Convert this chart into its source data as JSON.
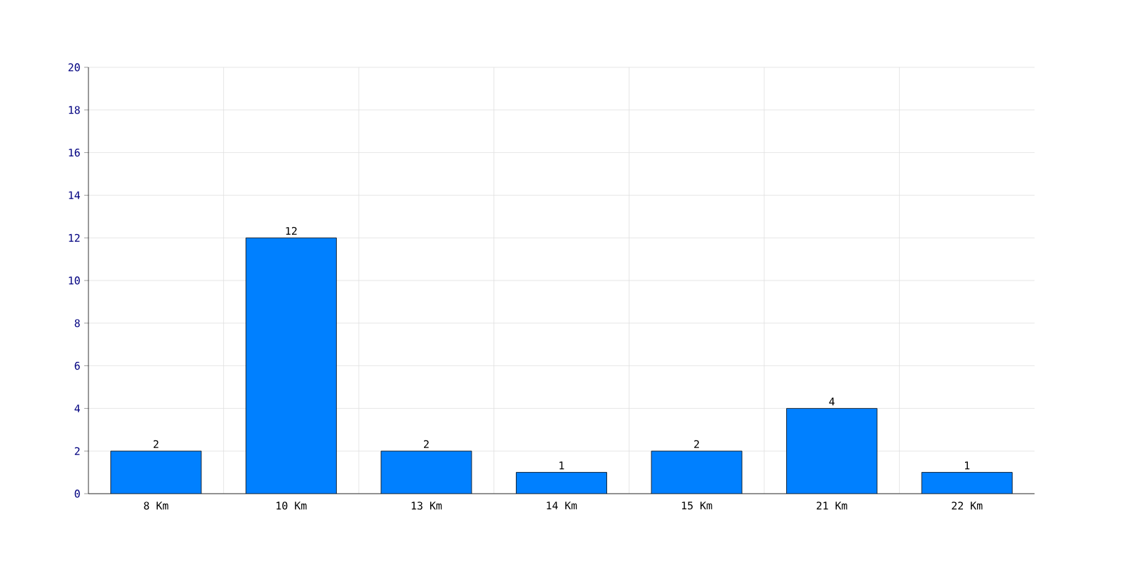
{
  "chart_data": {
    "type": "bar",
    "categories": [
      "8 Km",
      "10 Km",
      "13 Km",
      "14 Km",
      "15 Km",
      "21 Km",
      "22 Km"
    ],
    "values": [
      2,
      12,
      2,
      1,
      2,
      4,
      1
    ],
    "color": "#0080ff",
    "ylim": [
      0,
      20
    ],
    "yticks": [
      0,
      2,
      4,
      6,
      8,
      10,
      12,
      14,
      16,
      18,
      20
    ],
    "grid": true,
    "data_labels": true
  }
}
